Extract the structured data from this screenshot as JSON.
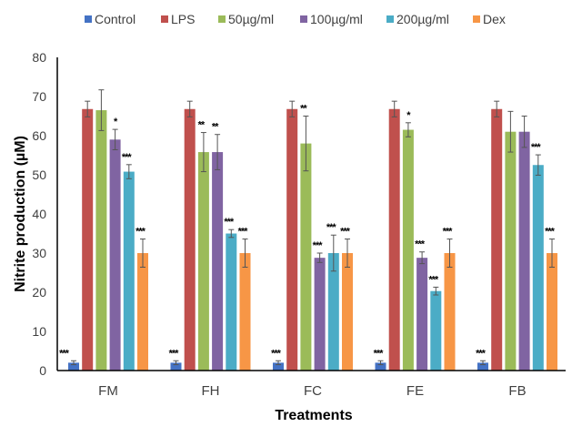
{
  "chart_data": {
    "type": "bar",
    "title": "",
    "xlabel": "Treatments",
    "ylabel": "Nitrite production (µM)",
    "ylim": [
      0,
      80
    ],
    "yticks": [
      0,
      10,
      20,
      30,
      40,
      50,
      60,
      70,
      80
    ],
    "grid": false,
    "legend_placement": "top",
    "categories": [
      "FM",
      "FH",
      "FC",
      "FE",
      "FB"
    ],
    "series": [
      {
        "name": "Control",
        "color": "#4472C4",
        "values": [
          2,
          2,
          2,
          2,
          2
        ],
        "errors": [
          0.5,
          0.5,
          0.5,
          0.5,
          0.5
        ],
        "significance": [
          "***",
          "***",
          "***",
          "***",
          "***"
        ]
      },
      {
        "name": "LPS",
        "color": "#C0504D",
        "values": [
          66.8,
          66.8,
          66.8,
          66.8,
          66.8
        ],
        "errors": [
          2,
          2,
          2,
          2,
          2
        ],
        "significance": [
          "",
          "",
          "",
          "",
          ""
        ]
      },
      {
        "name": "50µg/ml",
        "color": "#9BBB59",
        "values": [
          66.5,
          55.8,
          58,
          61.5,
          61
        ],
        "errors": [
          5.2,
          5,
          7,
          1.8,
          5.2
        ],
        "significance": [
          "",
          "**",
          "**",
          "*",
          ""
        ]
      },
      {
        "name": "100µg/ml",
        "color": "#8064A2",
        "values": [
          59,
          55.8,
          28.8,
          28.8,
          61
        ],
        "errors": [
          2.6,
          4.5,
          1.2,
          1.5,
          4
        ],
        "significance": [
          "*",
          "**",
          "***",
          "***",
          ""
        ]
      },
      {
        "name": "200µg/ml",
        "color": "#4BACC6",
        "values": [
          50.8,
          35,
          30,
          20.3,
          52.5
        ],
        "errors": [
          1.8,
          1,
          4.6,
          1,
          2.6
        ],
        "significance": [
          "***",
          "***",
          "***",
          "***",
          "***"
        ]
      },
      {
        "name": "Dex",
        "color": "#F79646",
        "values": [
          30,
          30,
          30,
          30,
          30
        ],
        "errors": [
          3.6,
          3.6,
          3.6,
          3.6,
          3.6
        ],
        "significance": [
          "***",
          "***",
          "***",
          "***",
          "***"
        ]
      }
    ]
  }
}
